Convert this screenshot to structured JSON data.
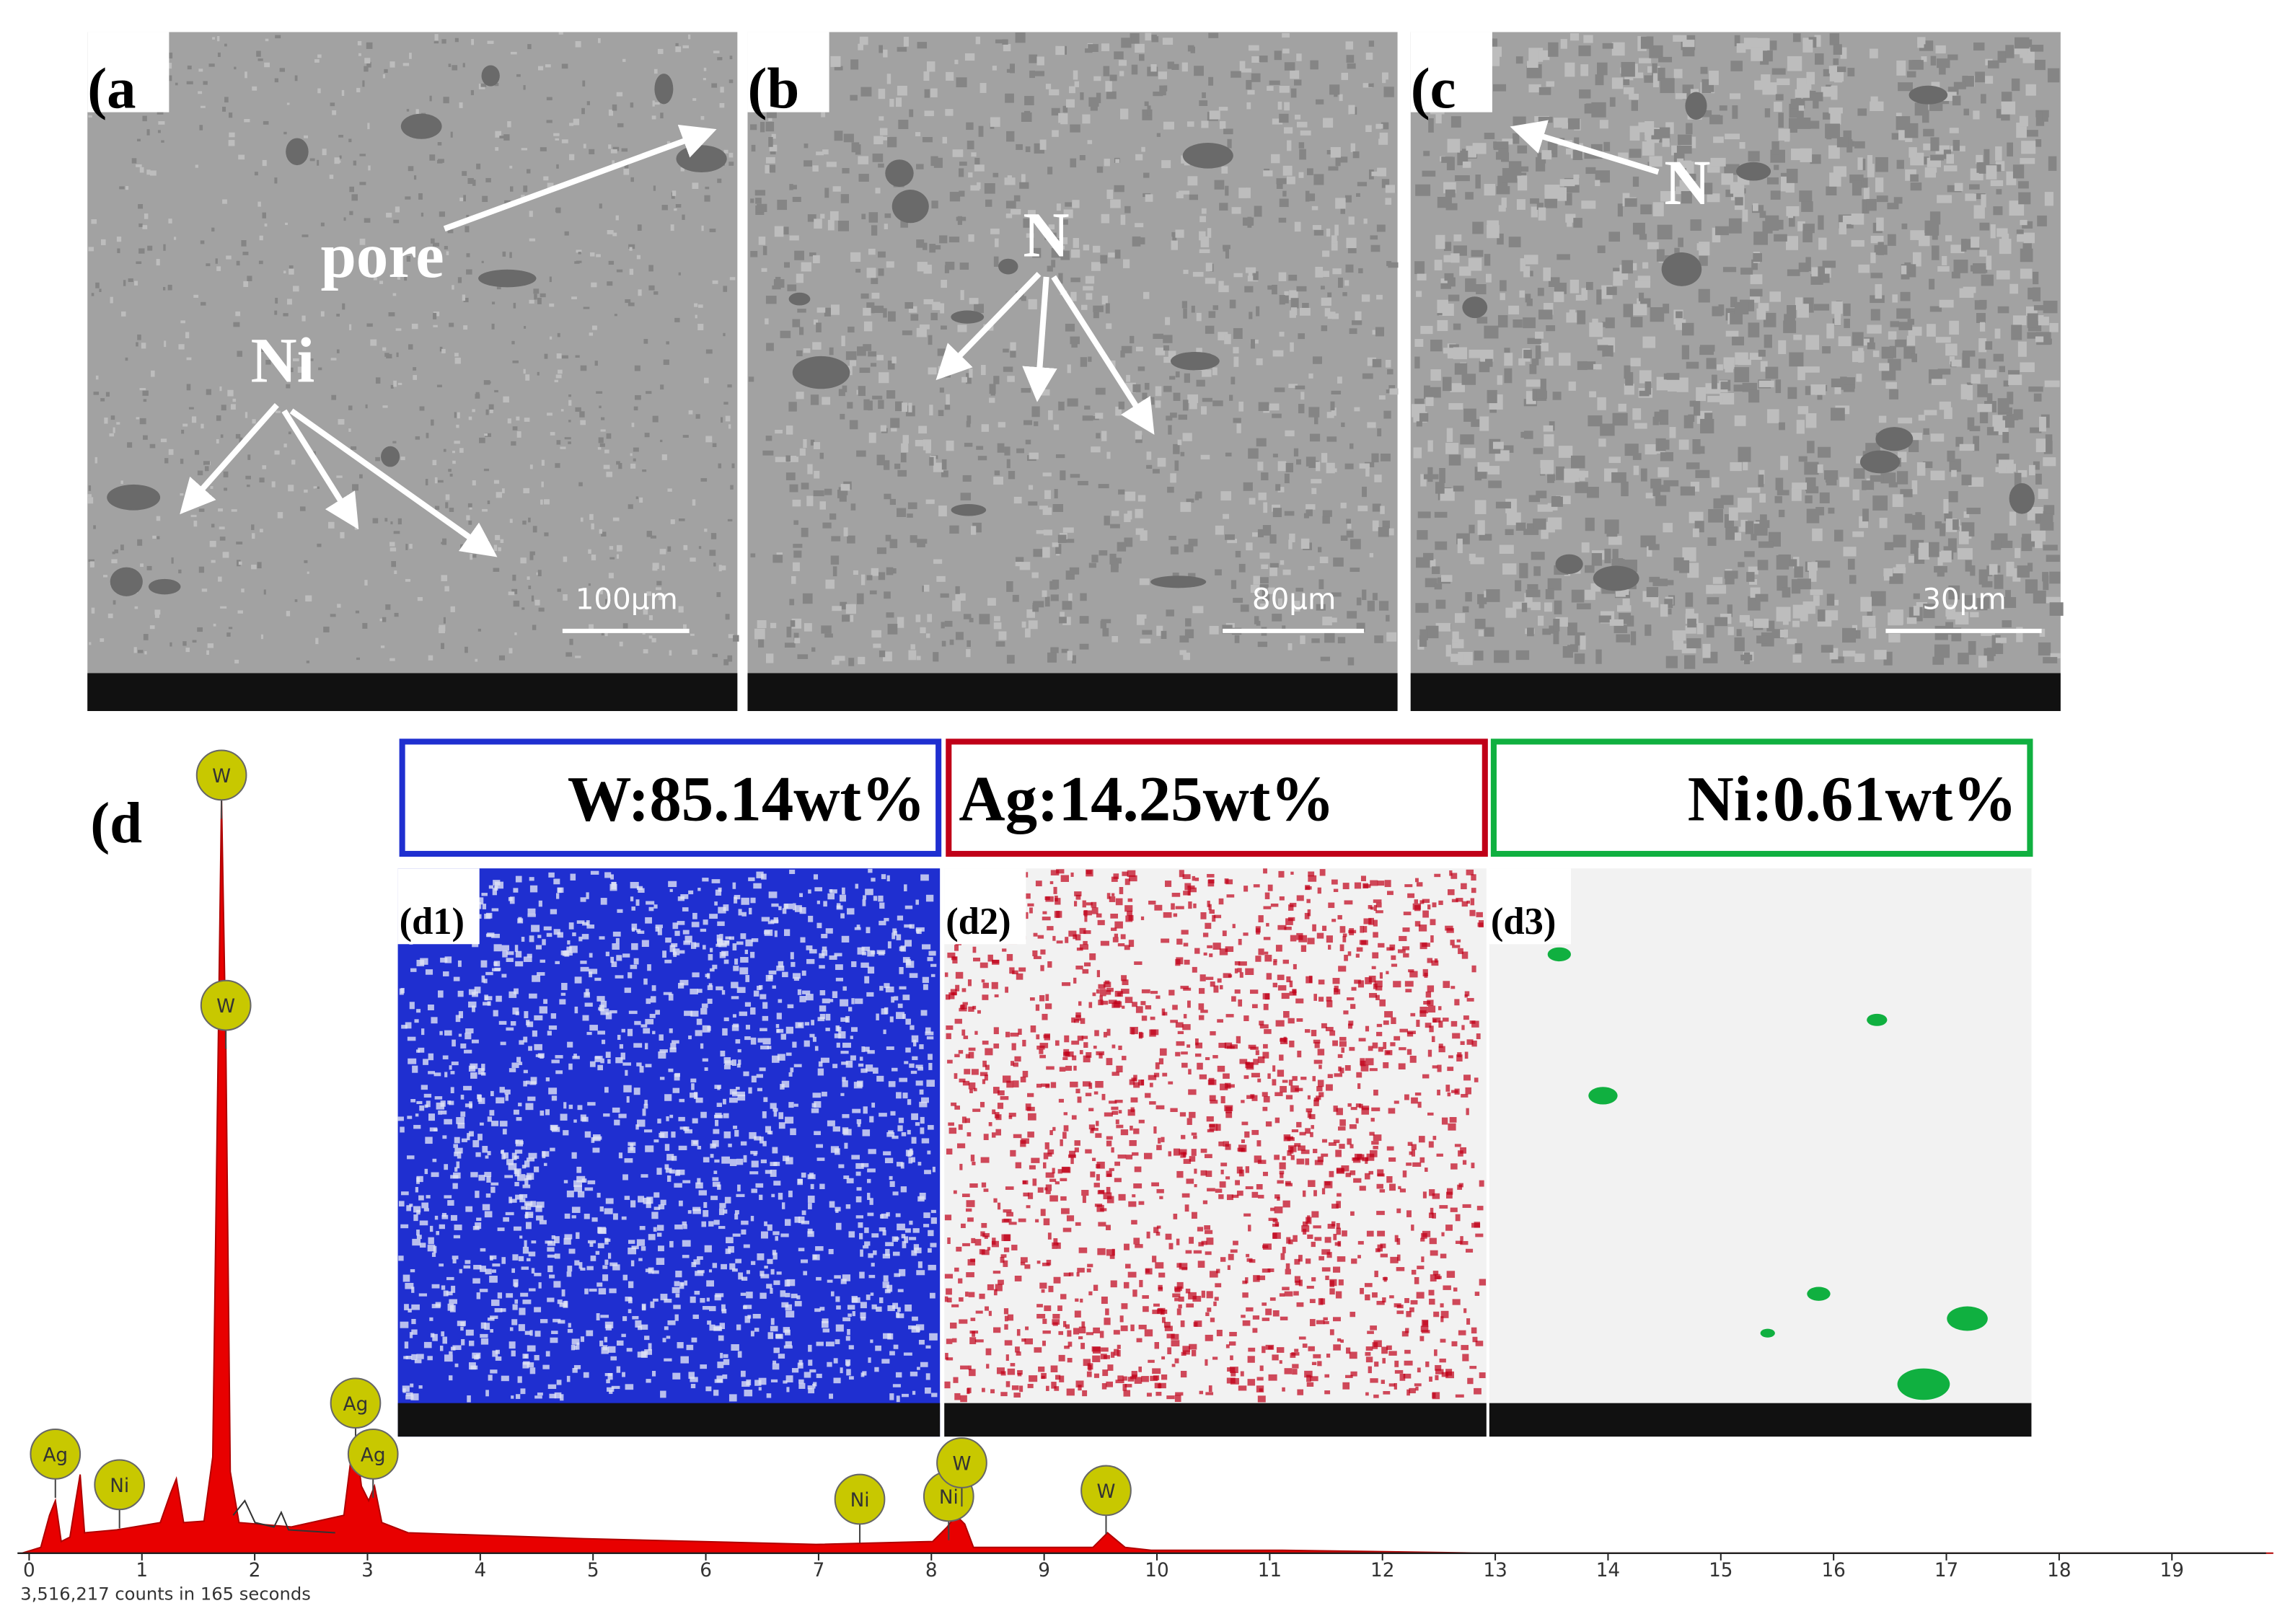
{
  "panels": [
    {
      "label": "(a",
      "scale_bar": "100µm",
      "annotations": [
        "pore",
        "Ni"
      ]
    },
    {
      "label": "(b",
      "scale_bar": "80µm",
      "annotations": [
        "N"
      ]
    },
    {
      "label": "(c",
      "scale_bar": "30µm",
      "annotations": [
        "N"
      ]
    }
  ],
  "spectrum": {
    "label": "(d",
    "xlim": [
      -0.07,
      19.7
    ],
    "xticks": [
      0,
      1,
      2,
      3,
      4,
      5,
      6,
      7,
      8,
      9,
      10,
      11,
      12,
      13,
      14,
      15,
      16,
      17,
      18,
      19
    ],
    "counts_note": "3,516,217 counts in 165 seconds",
    "peak_labels": [
      "W",
      "W",
      "Ag",
      "Ag",
      "Ag",
      "Ni",
      "Ni",
      "Ni",
      "W",
      "W"
    ]
  },
  "maps": [
    {
      "label": "(d1)",
      "composition": "W:85.14wt%",
      "color": "#1f2fd0"
    },
    {
      "label": "(d2)",
      "composition": "Ag:14.25wt%",
      "color": "#c00018"
    },
    {
      "label": "(d3)",
      "composition": "Ni:0.61wt%",
      "color": "#10b040"
    }
  ]
}
